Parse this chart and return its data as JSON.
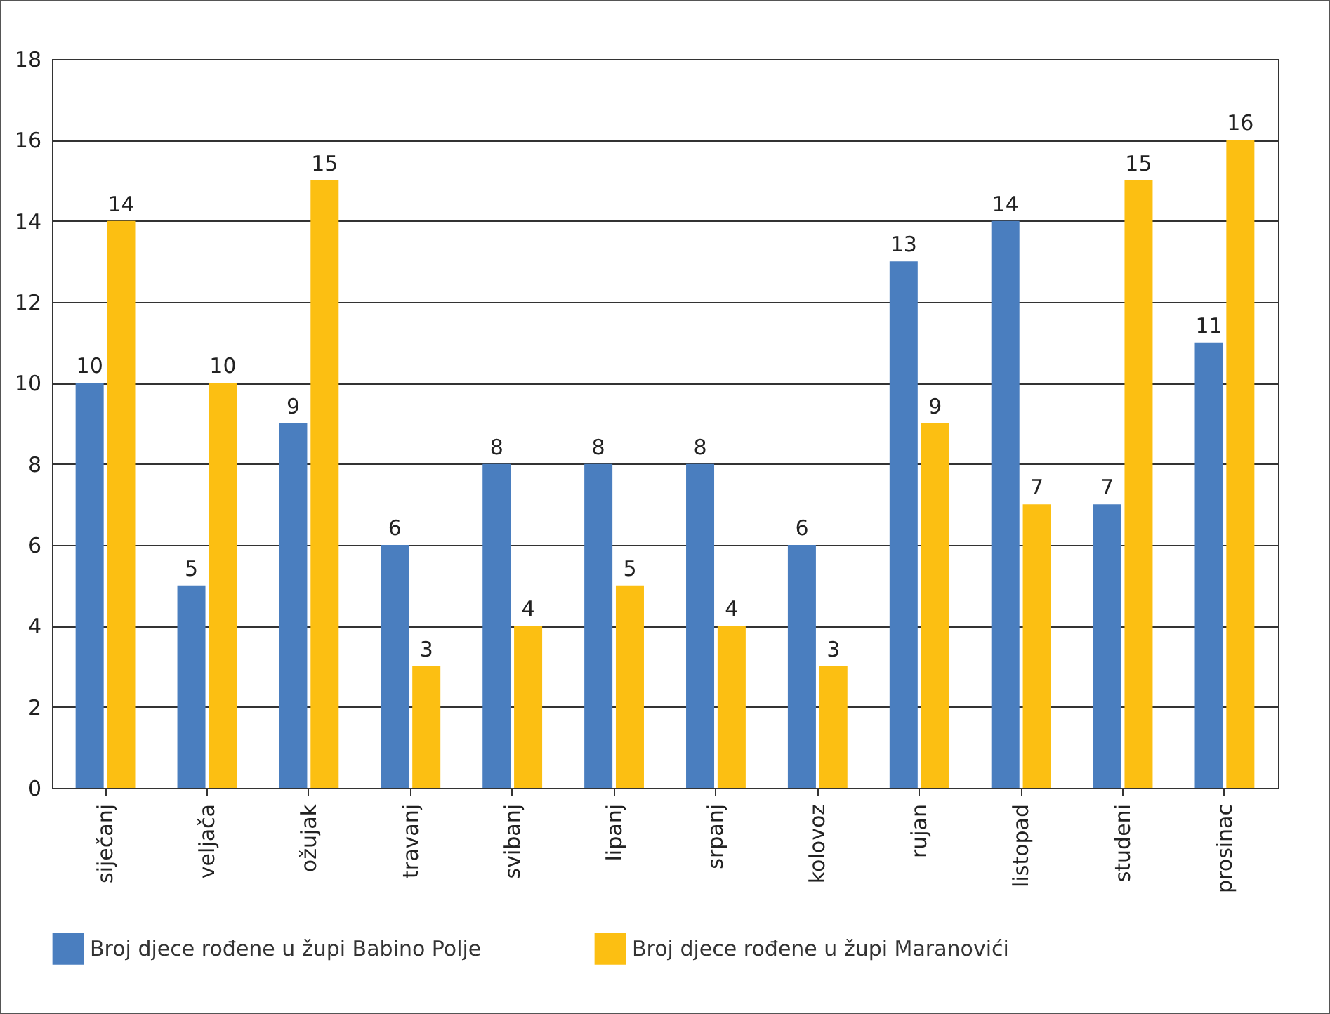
{
  "chart_data": {
    "type": "bar",
    "categories": [
      "siječanj",
      "veljača",
      "ožujak",
      "travanj",
      "svibanj",
      "lipanj",
      "srpanj",
      "kolovoz",
      "rujan",
      "listopad",
      "studeni",
      "prosinac"
    ],
    "series": [
      {
        "name": "Broj djece rođene u župi Babino Polje",
        "color": "#4a7ebf",
        "values": [
          10,
          5,
          9,
          6,
          8,
          8,
          8,
          6,
          13,
          14,
          7,
          11
        ]
      },
      {
        "name": "Broj djece rođene u župi Maranovići",
        "color": "#fcbf12",
        "values": [
          14,
          10,
          15,
          3,
          4,
          5,
          4,
          3,
          9,
          7,
          15,
          16
        ]
      }
    ],
    "ylim": [
      0,
      18
    ],
    "yticks": [
      0,
      2,
      4,
      6,
      8,
      10,
      12,
      14,
      16,
      18
    ],
    "grid": "y",
    "legend": "bottom",
    "data_labels": true
  }
}
